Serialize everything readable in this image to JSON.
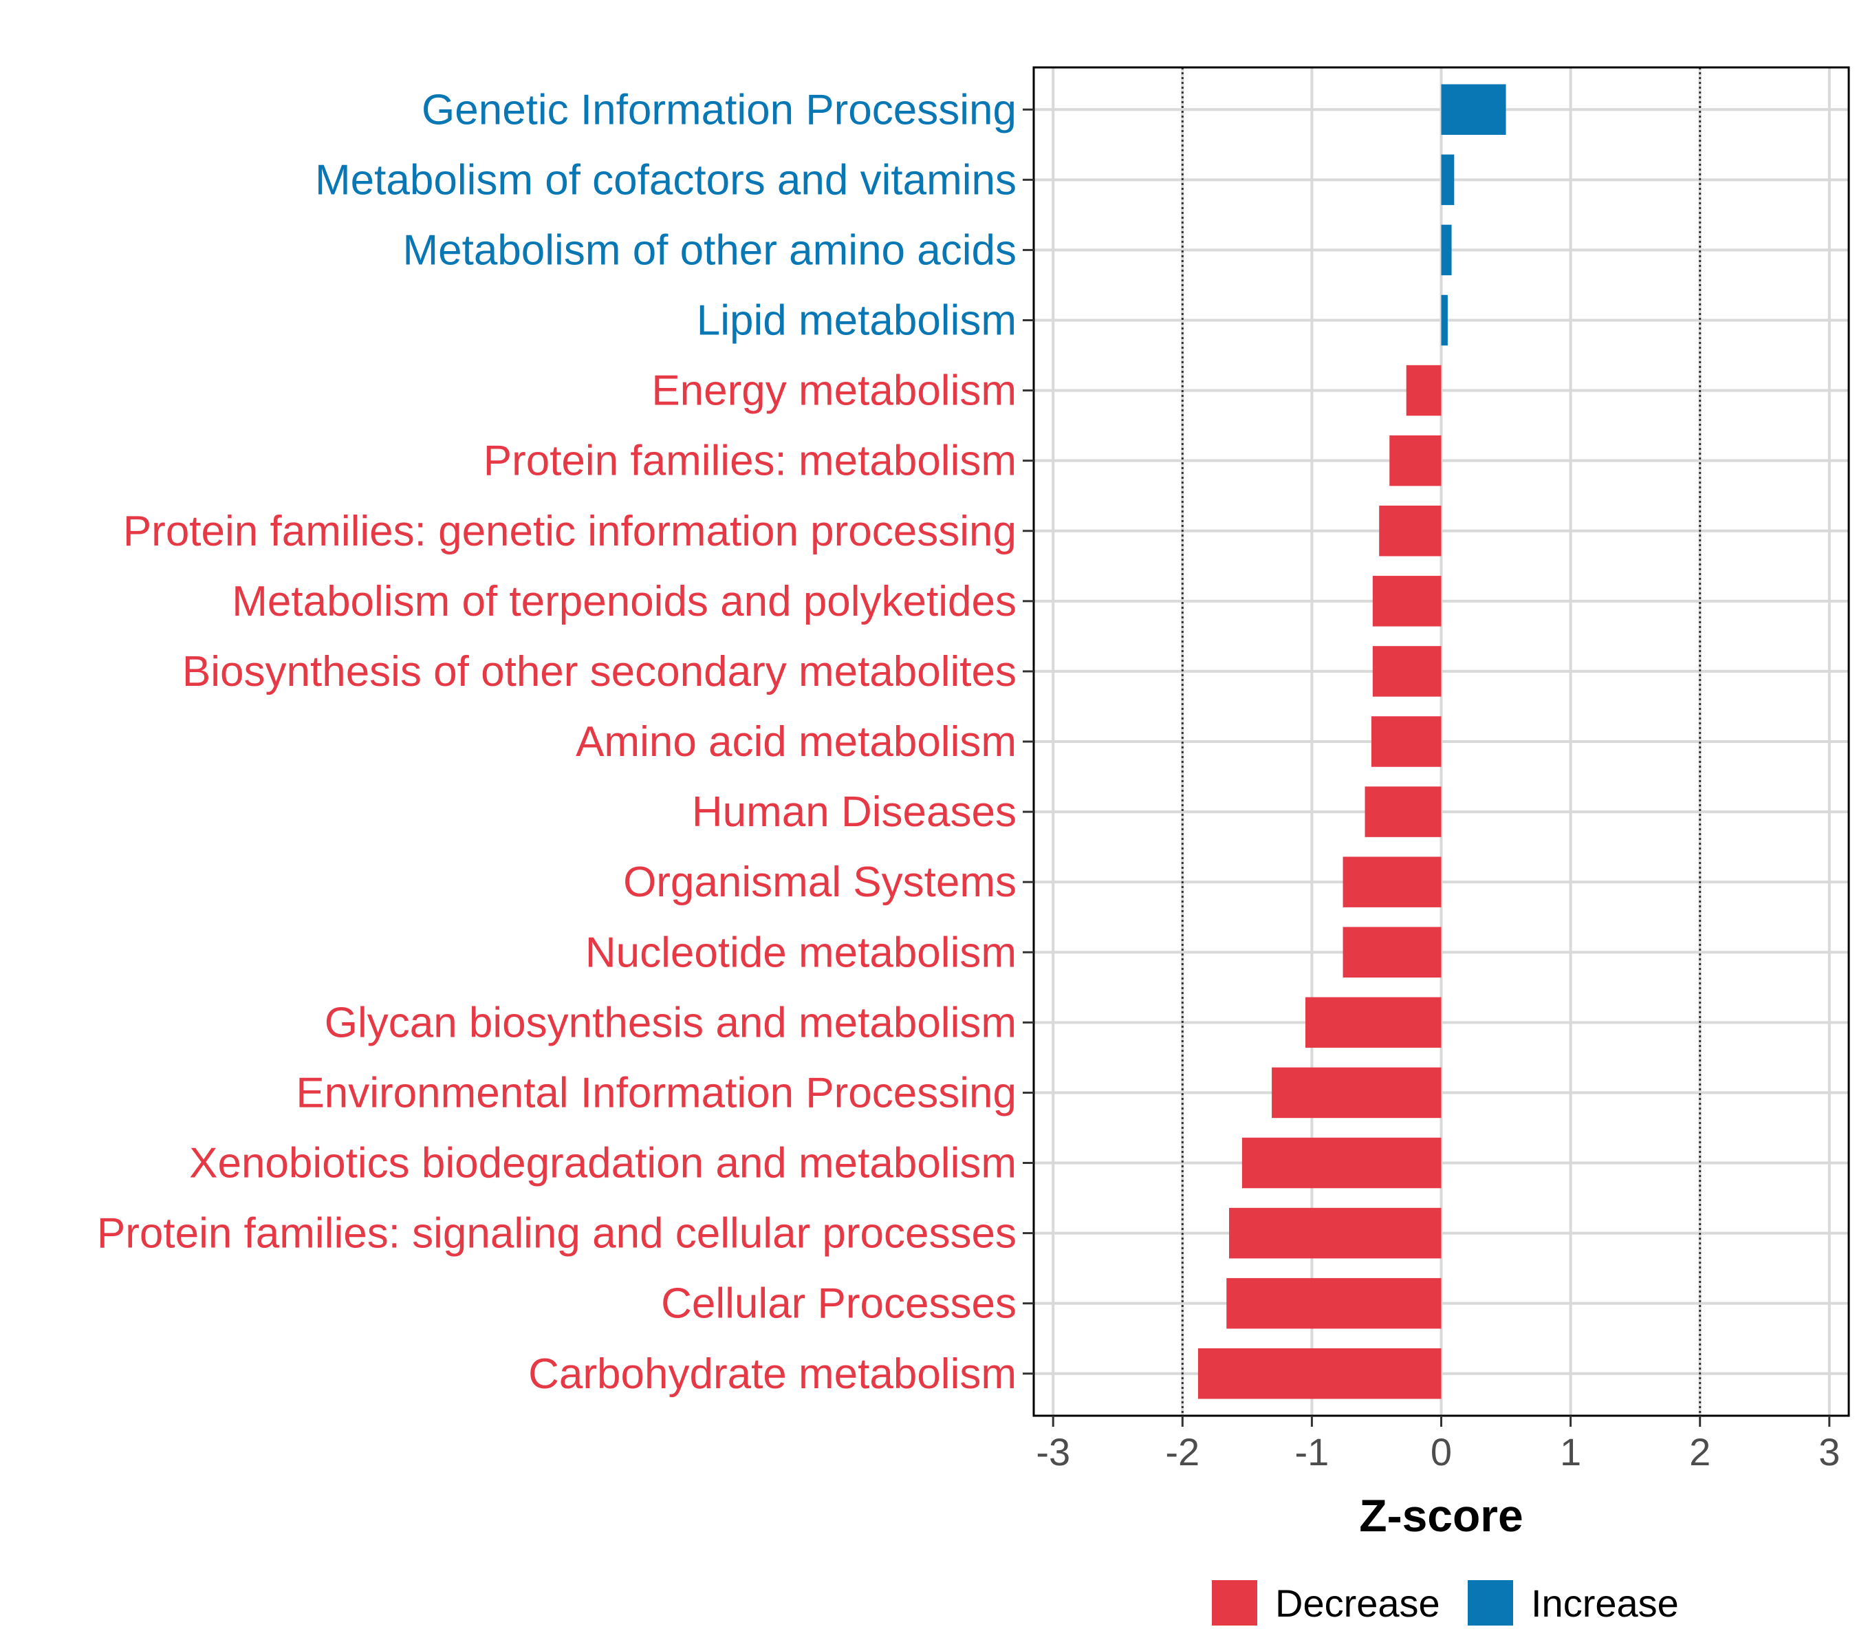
{
  "chart_data": {
    "type": "bar",
    "orientation": "horizontal",
    "categories": [
      "Genetic Information Processing",
      "Metabolism of cofactors and vitamins",
      "Metabolism of other amino acids",
      "Lipid metabolism",
      "Energy metabolism",
      "Protein families: metabolism",
      "Protein families: genetic information processing",
      "Metabolism of terpenoids and polyketides",
      "Biosynthesis of other secondary metabolites",
      "Amino acid metabolism",
      "Human Diseases",
      "Organismal Systems",
      "Nucleotide metabolism",
      "Glycan biosynthesis and metabolism",
      "Environmental Information Processing",
      "Xenobiotics biodegradation and metabolism",
      "Protein families: signaling and cellular processes",
      "Cellular Processes",
      "Carbohydrate metabolism"
    ],
    "values": [
      0.5,
      0.1,
      0.08,
      0.05,
      -0.27,
      -0.4,
      -0.48,
      -0.53,
      -0.53,
      -0.54,
      -0.59,
      -0.76,
      -0.76,
      -1.05,
      -1.31,
      -1.54,
      -1.64,
      -1.66,
      -1.88
    ],
    "direction": [
      "Increase",
      "Increase",
      "Increase",
      "Increase",
      "Decrease",
      "Decrease",
      "Decrease",
      "Decrease",
      "Decrease",
      "Decrease",
      "Decrease",
      "Decrease",
      "Decrease",
      "Decrease",
      "Decrease",
      "Decrease",
      "Decrease",
      "Decrease",
      "Decrease"
    ],
    "xlabel": "Z-score",
    "ylabel": "",
    "xlim": [
      -3.15,
      3.15
    ],
    "xticks": [
      -3,
      -2,
      -1,
      0,
      1,
      2,
      3
    ],
    "xtick_labels": [
      "-3",
      "-2",
      "-1",
      "0",
      "1",
      "2",
      "3"
    ],
    "reference_lines": [
      -2,
      2
    ],
    "grid": true,
    "legend": {
      "position": "bottom",
      "entries": [
        {
          "name": "Decrease",
          "color": "#e63946"
        },
        {
          "name": "Increase",
          "color": "#0a77b5"
        }
      ]
    },
    "colors": {
      "Decrease": "#e63946",
      "Increase": "#0a77b5"
    }
  }
}
